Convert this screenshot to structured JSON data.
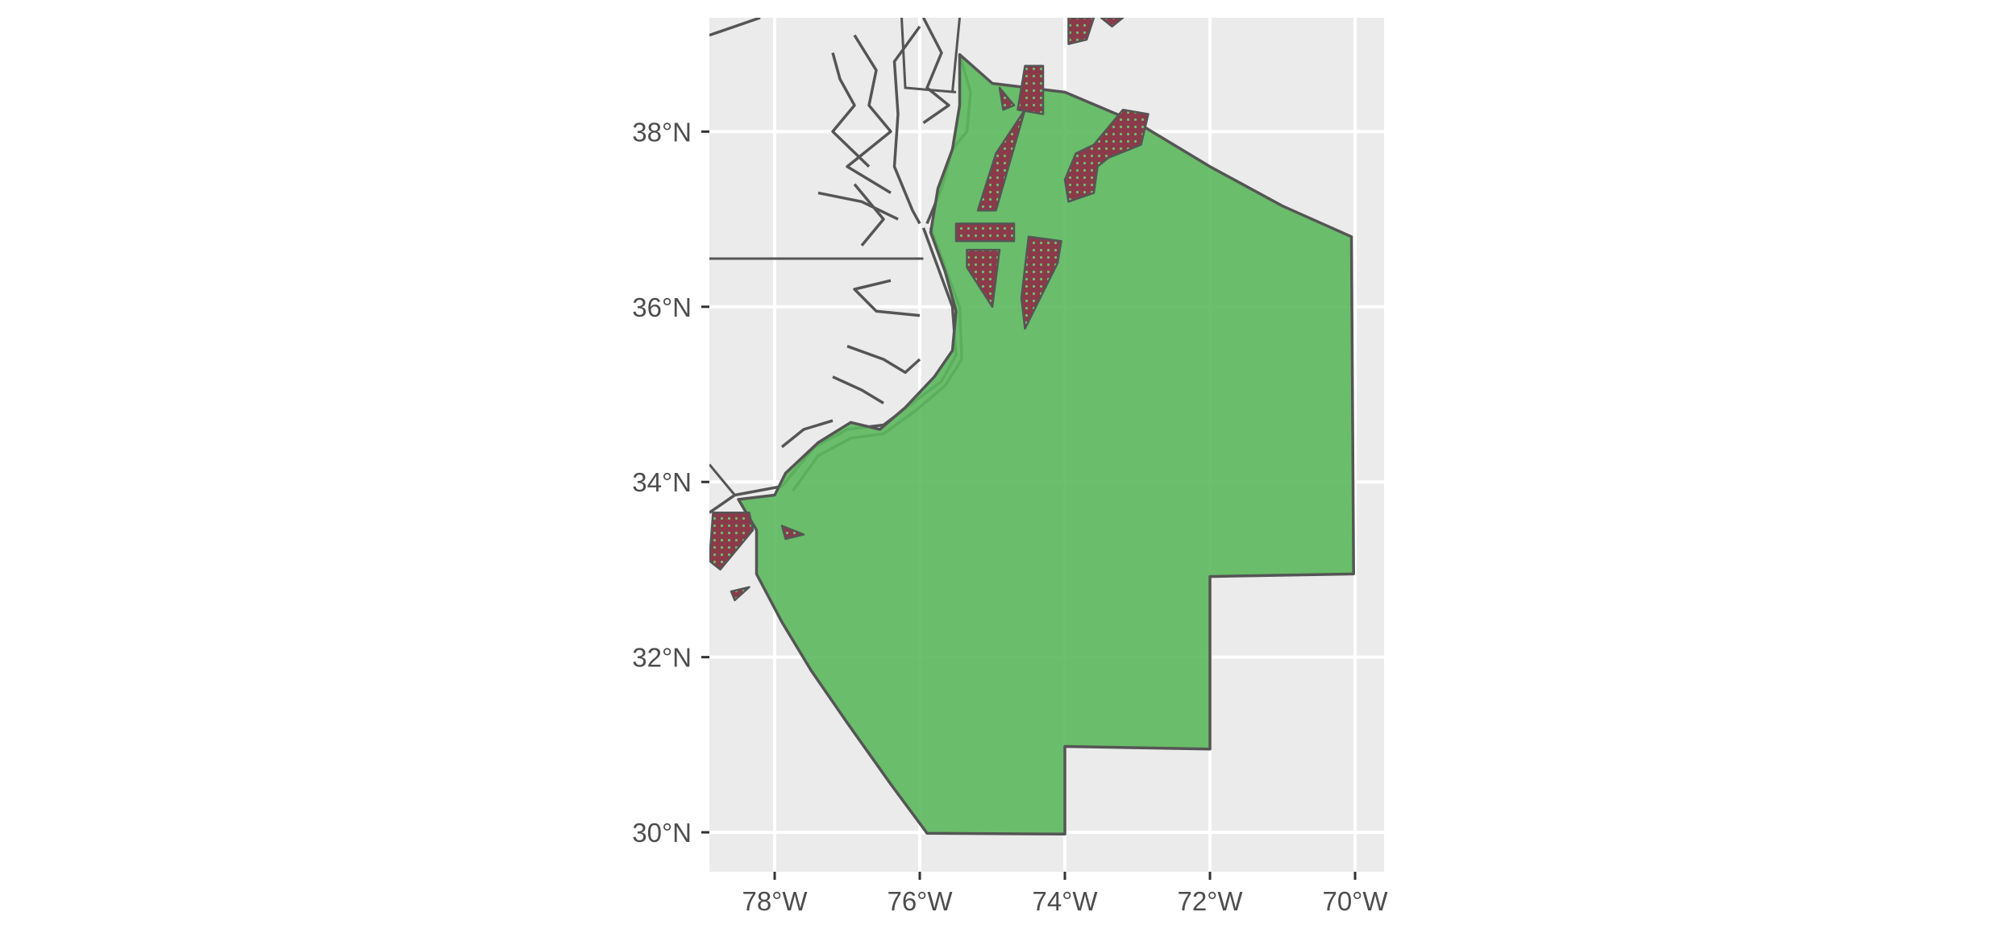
{
  "map": {
    "x_axis": {
      "labels": [
        "78°W",
        "76°W",
        "74°W",
        "72°W",
        "70°W"
      ],
      "values": [
        -78,
        -76,
        -74,
        -72,
        -70
      ],
      "range": [
        -78.9,
        -69.6
      ]
    },
    "y_axis": {
      "labels": [
        "30°N",
        "32°N",
        "34°N",
        "36°N",
        "38°N"
      ],
      "values": [
        30,
        32,
        34,
        36,
        38
      ],
      "range": [
        29.55,
        39.3
      ]
    },
    "grid": true,
    "colors": {
      "panel_background": "#ebebeb",
      "land": "#e6e6e6",
      "gridline": "#ffffff",
      "boundary_line": "#555555",
      "study_area_fill": "#5cb85c",
      "study_area_opacity": 0.9,
      "hatched_zone_fill": "#8b3a4a",
      "hatched_zone_dot": "#6fbf70"
    },
    "study_area": {
      "name": "",
      "polygon_lonlat": [
        [
          -75.45,
          38.88
        ],
        [
          -75.0,
          38.55
        ],
        [
          -74.0,
          38.45
        ],
        [
          -73.0,
          38.1
        ],
        [
          -72.0,
          37.6
        ],
        [
          -71.0,
          37.15
        ],
        [
          -70.05,
          36.8
        ],
        [
          -70.02,
          32.95
        ],
        [
          -72.0,
          32.92
        ],
        [
          -72.0,
          30.95
        ],
        [
          -74.0,
          30.98
        ],
        [
          -74.0,
          29.98
        ],
        [
          -75.9,
          29.99
        ],
        [
          -76.4,
          30.55
        ],
        [
          -77.0,
          31.25
        ],
        [
          -77.5,
          31.85
        ],
        [
          -77.9,
          32.4
        ],
        [
          -78.25,
          32.95
        ],
        [
          -78.25,
          33.45
        ],
        [
          -78.5,
          33.8
        ],
        [
          -78.0,
          33.85
        ],
        [
          -77.85,
          34.1
        ],
        [
          -77.4,
          34.45
        ],
        [
          -76.95,
          34.68
        ],
        [
          -76.55,
          34.6
        ],
        [
          -76.2,
          34.85
        ],
        [
          -75.8,
          35.2
        ],
        [
          -75.55,
          35.5
        ],
        [
          -75.5,
          35.95
        ],
        [
          -75.65,
          36.4
        ],
        [
          -75.85,
          36.85
        ],
        [
          -75.75,
          37.35
        ],
        [
          -75.55,
          37.8
        ],
        [
          -75.45,
          38.3
        ]
      ]
    },
    "hatched_zones": [
      [
        [
          -74.55,
          38.75
        ],
        [
          -74.3,
          38.75
        ],
        [
          -74.3,
          38.2
        ],
        [
          -74.65,
          38.25
        ]
      ],
      [
        [
          -74.9,
          38.5
        ],
        [
          -74.7,
          38.3
        ],
        [
          -74.85,
          38.25
        ]
      ],
      [
        [
          -74.55,
          38.25
        ],
        [
          -74.95,
          37.1
        ],
        [
          -75.2,
          37.1
        ],
        [
          -74.95,
          37.75
        ]
      ],
      [
        [
          -73.2,
          38.25
        ],
        [
          -72.85,
          38.2
        ],
        [
          -72.95,
          37.85
        ],
        [
          -73.4,
          37.7
        ],
        [
          -73.55,
          37.6
        ],
        [
          -73.6,
          37.3
        ],
        [
          -73.95,
          37.2
        ],
        [
          -74.0,
          37.45
        ],
        [
          -73.85,
          37.75
        ],
        [
          -73.6,
          37.85
        ],
        [
          -73.4,
          38.05
        ]
      ],
      [
        [
          -75.5,
          36.95
        ],
        [
          -74.7,
          36.95
        ],
        [
          -74.7,
          36.75
        ],
        [
          -75.5,
          36.75
        ]
      ],
      [
        [
          -75.35,
          36.65
        ],
        [
          -74.9,
          36.65
        ],
        [
          -75.0,
          36.0
        ],
        [
          -75.35,
          36.45
        ]
      ],
      [
        [
          -74.5,
          36.8
        ],
        [
          -74.05,
          36.75
        ],
        [
          -74.1,
          36.5
        ],
        [
          -74.55,
          35.75
        ],
        [
          -74.6,
          36.1
        ]
      ],
      [
        [
          -78.85,
          33.65
        ],
        [
          -78.35,
          33.65
        ],
        [
          -78.3,
          33.45
        ],
        [
          -78.75,
          33.0
        ],
        [
          -78.9,
          33.1
        ]
      ],
      [
        [
          -77.9,
          33.5
        ],
        [
          -77.6,
          33.4
        ],
        [
          -77.85,
          33.35
        ]
      ],
      [
        [
          -78.6,
          32.75
        ],
        [
          -78.35,
          32.8
        ],
        [
          -78.55,
          32.65
        ]
      ],
      [
        [
          -73.95,
          39.3
        ],
        [
          -73.6,
          39.3
        ],
        [
          -73.7,
          39.05
        ],
        [
          -73.95,
          39.0
        ]
      ],
      [
        [
          -73.5,
          39.3
        ],
        [
          -73.2,
          39.3
        ],
        [
          -73.35,
          39.2
        ]
      ]
    ],
    "state_lines": [
      [
        [
          -78.9,
          36.55
        ],
        [
          -76.9,
          36.55
        ],
        [
          -75.95,
          36.55
        ]
      ],
      [
        [
          -78.9,
          34.2
        ],
        [
          -78.55,
          33.85
        ]
      ],
      [
        [
          -76.25,
          39.3
        ],
        [
          -76.2,
          38.5
        ],
        [
          -75.5,
          38.45
        ]
      ],
      [
        [
          -75.45,
          39.3
        ],
        [
          -75.55,
          38.45
        ]
      ]
    ],
    "coast_lines": [
      [
        [
          -75.45,
          38.88
        ],
        [
          -75.3,
          38.45
        ],
        [
          -75.35,
          38.0
        ],
        [
          -75.55,
          37.8
        ],
        [
          -75.7,
          37.35
        ],
        [
          -75.9,
          36.95
        ]
      ],
      [
        [
          -75.95,
          36.9
        ],
        [
          -75.75,
          36.45
        ],
        [
          -75.55,
          36.0
        ],
        [
          -75.5,
          35.45
        ],
        [
          -75.7,
          35.15
        ],
        [
          -76.1,
          34.9
        ],
        [
          -76.5,
          34.65
        ],
        [
          -77.0,
          34.6
        ],
        [
          -77.45,
          34.4
        ],
        [
          -77.9,
          33.95
        ],
        [
          -78.55,
          33.85
        ],
        [
          -78.9,
          33.65
        ]
      ],
      [
        [
          -75.85,
          36.9
        ],
        [
          -75.65,
          36.45
        ],
        [
          -75.45,
          36.0
        ],
        [
          -75.42,
          35.4
        ],
        [
          -75.65,
          35.1
        ],
        [
          -76.05,
          34.82
        ],
        [
          -76.5,
          34.55
        ],
        [
          -76.95,
          34.5
        ],
        [
          -77.4,
          34.3
        ],
        [
          -77.75,
          33.9
        ]
      ],
      [
        [
          -76.0,
          39.2
        ],
        [
          -76.35,
          38.8
        ],
        [
          -76.3,
          38.2
        ],
        [
          -76.35,
          37.6
        ],
        [
          -76.1,
          37.1
        ],
        [
          -76.0,
          36.95
        ]
      ],
      [
        [
          -76.9,
          39.1
        ],
        [
          -76.6,
          38.7
        ],
        [
          -76.7,
          38.3
        ],
        [
          -76.4,
          38.0
        ],
        [
          -77.0,
          37.6
        ],
        [
          -76.4,
          37.3
        ]
      ],
      [
        [
          -77.2,
          38.9
        ],
        [
          -77.1,
          38.6
        ],
        [
          -76.9,
          38.3
        ],
        [
          -77.2,
          38.0
        ],
        [
          -76.7,
          37.6
        ]
      ],
      [
        [
          -75.95,
          39.3
        ],
        [
          -75.7,
          38.9
        ],
        [
          -75.9,
          38.5
        ],
        [
          -75.6,
          38.3
        ],
        [
          -75.95,
          38.1
        ]
      ],
      [
        [
          -78.9,
          39.1
        ],
        [
          -78.2,
          39.3
        ]
      ],
      [
        [
          -77.4,
          37.3
        ],
        [
          -76.8,
          37.2
        ],
        [
          -76.3,
          37.0
        ]
      ],
      [
        [
          -76.9,
          37.4
        ],
        [
          -76.5,
          37.0
        ],
        [
          -76.8,
          36.7
        ]
      ],
      [
        [
          -76.4,
          36.3
        ],
        [
          -76.9,
          36.2
        ],
        [
          -76.6,
          35.95
        ],
        [
          -76.0,
          35.9
        ]
      ],
      [
        [
          -77.0,
          35.55
        ],
        [
          -76.5,
          35.4
        ],
        [
          -76.2,
          35.25
        ],
        [
          -76.0,
          35.4
        ]
      ],
      [
        [
          -77.2,
          35.2
        ],
        [
          -76.8,
          35.05
        ],
        [
          -76.5,
          34.9
        ]
      ],
      [
        [
          -77.9,
          34.4
        ],
        [
          -77.6,
          34.6
        ],
        [
          -77.2,
          34.7
        ]
      ]
    ]
  }
}
